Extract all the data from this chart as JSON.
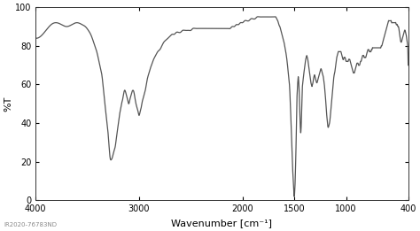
{
  "title": "",
  "xlabel": "Wavenumber [cm⁻¹]",
  "ylabel": "%T",
  "xlim": [
    4000,
    400
  ],
  "ylim": [
    0,
    100
  ],
  "xticks": [
    4000,
    3000,
    2000,
    1500,
    1000,
    400
  ],
  "yticks": [
    0,
    20,
    40,
    60,
    80,
    100
  ],
  "watermark": "IR2020-76783ND",
  "line_color": "#555555",
  "bg_color": "#ffffff",
  "line_width": 0.9,
  "key_points": [
    [
      4000,
      84
    ],
    [
      3950,
      85
    ],
    [
      3900,
      88
    ],
    [
      3850,
      91
    ],
    [
      3800,
      92
    ],
    [
      3750,
      91
    ],
    [
      3700,
      90
    ],
    [
      3650,
      91
    ],
    [
      3600,
      92
    ],
    [
      3550,
      91
    ],
    [
      3520,
      90
    ],
    [
      3490,
      88
    ],
    [
      3460,
      85
    ],
    [
      3440,
      82
    ],
    [
      3420,
      79
    ],
    [
      3400,
      75
    ],
    [
      3380,
      70
    ],
    [
      3360,
      65
    ],
    [
      3340,
      55
    ],
    [
      3320,
      45
    ],
    [
      3300,
      35
    ],
    [
      3290,
      28
    ],
    [
      3280,
      22
    ],
    [
      3270,
      21
    ],
    [
      3260,
      22
    ],
    [
      3250,
      24
    ],
    [
      3240,
      26
    ],
    [
      3230,
      28
    ],
    [
      3220,
      32
    ],
    [
      3210,
      36
    ],
    [
      3200,
      40
    ],
    [
      3190,
      44
    ],
    [
      3180,
      47
    ],
    [
      3170,
      50
    ],
    [
      3160,
      52
    ],
    [
      3150,
      55
    ],
    [
      3140,
      57
    ],
    [
      3130,
      56
    ],
    [
      3120,
      54
    ],
    [
      3110,
      52
    ],
    [
      3100,
      50
    ],
    [
      3090,
      52
    ],
    [
      3080,
      54
    ],
    [
      3070,
      56
    ],
    [
      3060,
      57
    ],
    [
      3050,
      56
    ],
    [
      3040,
      53
    ],
    [
      3030,
      50
    ],
    [
      3020,
      48
    ],
    [
      3010,
      46
    ],
    [
      3000,
      44
    ],
    [
      2990,
      46
    ],
    [
      2980,
      48
    ],
    [
      2970,
      51
    ],
    [
      2960,
      53
    ],
    [
      2950,
      55
    ],
    [
      2940,
      57
    ],
    [
      2930,
      60
    ],
    [
      2920,
      63
    ],
    [
      2910,
      65
    ],
    [
      2900,
      67
    ],
    [
      2880,
      70
    ],
    [
      2860,
      73
    ],
    [
      2840,
      75
    ],
    [
      2820,
      77
    ],
    [
      2800,
      78
    ],
    [
      2780,
      80
    ],
    [
      2760,
      82
    ],
    [
      2740,
      83
    ],
    [
      2720,
      84
    ],
    [
      2700,
      85
    ],
    [
      2680,
      86
    ],
    [
      2660,
      86
    ],
    [
      2640,
      87
    ],
    [
      2620,
      87
    ],
    [
      2600,
      87
    ],
    [
      2580,
      88
    ],
    [
      2560,
      88
    ],
    [
      2540,
      88
    ],
    [
      2520,
      88
    ],
    [
      2500,
      88
    ],
    [
      2480,
      89
    ],
    [
      2460,
      89
    ],
    [
      2440,
      89
    ],
    [
      2420,
      89
    ],
    [
      2400,
      89
    ],
    [
      2380,
      89
    ],
    [
      2360,
      89
    ],
    [
      2340,
      89
    ],
    [
      2320,
      89
    ],
    [
      2300,
      89
    ],
    [
      2280,
      89
    ],
    [
      2260,
      89
    ],
    [
      2240,
      89
    ],
    [
      2220,
      89
    ],
    [
      2200,
      89
    ],
    [
      2180,
      89
    ],
    [
      2160,
      89
    ],
    [
      2140,
      89
    ],
    [
      2120,
      89
    ],
    [
      2100,
      90
    ],
    [
      2080,
      90
    ],
    [
      2060,
      91
    ],
    [
      2040,
      91
    ],
    [
      2020,
      92
    ],
    [
      2000,
      92
    ],
    [
      1980,
      93
    ],
    [
      1960,
      93
    ],
    [
      1940,
      93
    ],
    [
      1920,
      94
    ],
    [
      1900,
      94
    ],
    [
      1880,
      94
    ],
    [
      1860,
      95
    ],
    [
      1840,
      95
    ],
    [
      1820,
      95
    ],
    [
      1800,
      95
    ],
    [
      1780,
      95
    ],
    [
      1760,
      95
    ],
    [
      1740,
      95
    ],
    [
      1720,
      95
    ],
    [
      1700,
      95
    ],
    [
      1690,
      95
    ],
    [
      1680,
      95
    ],
    [
      1670,
      94
    ],
    [
      1660,
      93
    ],
    [
      1650,
      91
    ],
    [
      1640,
      90
    ],
    [
      1630,
      88
    ],
    [
      1620,
      86
    ],
    [
      1610,
      84
    ],
    [
      1600,
      82
    ],
    [
      1590,
      79
    ],
    [
      1580,
      76
    ],
    [
      1570,
      72
    ],
    [
      1560,
      67
    ],
    [
      1550,
      62
    ],
    [
      1545,
      58
    ],
    [
      1540,
      52
    ],
    [
      1535,
      45
    ],
    [
      1530,
      38
    ],
    [
      1525,
      30
    ],
    [
      1520,
      22
    ],
    [
      1515,
      15
    ],
    [
      1510,
      10
    ],
    [
      1507,
      7
    ],
    [
      1505,
      5
    ],
    [
      1503,
      3
    ],
    [
      1501,
      2
    ],
    [
      1500,
      2
    ],
    [
      1499,
      2
    ],
    [
      1498,
      3
    ],
    [
      1496,
      5
    ],
    [
      1494,
      7
    ],
    [
      1492,
      10
    ],
    [
      1490,
      14
    ],
    [
      1488,
      18
    ],
    [
      1486,
      22
    ],
    [
      1484,
      27
    ],
    [
      1482,
      33
    ],
    [
      1480,
      40
    ],
    [
      1478,
      46
    ],
    [
      1476,
      50
    ],
    [
      1474,
      54
    ],
    [
      1472,
      56
    ],
    [
      1470,
      58
    ],
    [
      1468,
      60
    ],
    [
      1466,
      62
    ],
    [
      1464,
      63
    ],
    [
      1462,
      64
    ],
    [
      1460,
      63
    ],
    [
      1458,
      62
    ],
    [
      1456,
      60
    ],
    [
      1454,
      58
    ],
    [
      1452,
      55
    ],
    [
      1450,
      52
    ],
    [
      1448,
      48
    ],
    [
      1446,
      44
    ],
    [
      1444,
      41
    ],
    [
      1442,
      38
    ],
    [
      1440,
      36
    ],
    [
      1438,
      35
    ],
    [
      1436,
      36
    ],
    [
      1434,
      38
    ],
    [
      1432,
      42
    ],
    [
      1430,
      46
    ],
    [
      1428,
      50
    ],
    [
      1426,
      54
    ],
    [
      1424,
      57
    ],
    [
      1422,
      59
    ],
    [
      1420,
      60
    ],
    [
      1418,
      61
    ],
    [
      1416,
      62
    ],
    [
      1414,
      63
    ],
    [
      1412,
      64
    ],
    [
      1410,
      65
    ],
    [
      1405,
      67
    ],
    [
      1400,
      69
    ],
    [
      1395,
      71
    ],
    [
      1390,
      73
    ],
    [
      1385,
      74
    ],
    [
      1380,
      75
    ],
    [
      1375,
      74
    ],
    [
      1370,
      73
    ],
    [
      1365,
      71
    ],
    [
      1360,
      69
    ],
    [
      1355,
      67
    ],
    [
      1350,
      65
    ],
    [
      1345,
      63
    ],
    [
      1340,
      61
    ],
    [
      1335,
      60
    ],
    [
      1330,
      59
    ],
    [
      1325,
      60
    ],
    [
      1320,
      61
    ],
    [
      1315,
      63
    ],
    [
      1310,
      64
    ],
    [
      1305,
      65
    ],
    [
      1300,
      64
    ],
    [
      1295,
      63
    ],
    [
      1290,
      62
    ],
    [
      1285,
      61
    ],
    [
      1280,
      61
    ],
    [
      1275,
      62
    ],
    [
      1270,
      63
    ],
    [
      1265,
      64
    ],
    [
      1260,
      65
    ],
    [
      1255,
      66
    ],
    [
      1250,
      67
    ],
    [
      1245,
      68
    ],
    [
      1240,
      68
    ],
    [
      1235,
      67
    ],
    [
      1230,
      66
    ],
    [
      1225,
      65
    ],
    [
      1220,
      64
    ],
    [
      1215,
      62
    ],
    [
      1210,
      60
    ],
    [
      1205,
      57
    ],
    [
      1200,
      54
    ],
    [
      1195,
      50
    ],
    [
      1190,
      46
    ],
    [
      1185,
      43
    ],
    [
      1180,
      40
    ],
    [
      1175,
      38
    ],
    [
      1170,
      38
    ],
    [
      1165,
      39
    ],
    [
      1160,
      40
    ],
    [
      1155,
      42
    ],
    [
      1150,
      45
    ],
    [
      1145,
      48
    ],
    [
      1140,
      51
    ],
    [
      1135,
      54
    ],
    [
      1130,
      57
    ],
    [
      1125,
      60
    ],
    [
      1120,
      63
    ],
    [
      1115,
      65
    ],
    [
      1110,
      66
    ],
    [
      1105,
      68
    ],
    [
      1100,
      70
    ],
    [
      1095,
      72
    ],
    [
      1090,
      74
    ],
    [
      1085,
      75
    ],
    [
      1080,
      76
    ],
    [
      1075,
      77
    ],
    [
      1070,
      77
    ],
    [
      1065,
      77
    ],
    [
      1060,
      77
    ],
    [
      1055,
      77
    ],
    [
      1050,
      77
    ],
    [
      1045,
      76
    ],
    [
      1040,
      75
    ],
    [
      1035,
      74
    ],
    [
      1030,
      73
    ],
    [
      1025,
      73
    ],
    [
      1020,
      74
    ],
    [
      1015,
      74
    ],
    [
      1010,
      74
    ],
    [
      1005,
      73
    ],
    [
      1000,
      72
    ],
    [
      995,
      72
    ],
    [
      990,
      72
    ],
    [
      985,
      72
    ],
    [
      980,
      72
    ],
    [
      975,
      73
    ],
    [
      970,
      73
    ],
    [
      965,
      73
    ],
    [
      960,
      72
    ],
    [
      955,
      71
    ],
    [
      950,
      70
    ],
    [
      945,
      69
    ],
    [
      940,
      68
    ],
    [
      935,
      67
    ],
    [
      930,
      66
    ],
    [
      925,
      66
    ],
    [
      920,
      66
    ],
    [
      915,
      67
    ],
    [
      910,
      68
    ],
    [
      905,
      69
    ],
    [
      900,
      70
    ],
    [
      895,
      71
    ],
    [
      890,
      71
    ],
    [
      885,
      71
    ],
    [
      880,
      70
    ],
    [
      875,
      70
    ],
    [
      870,
      70
    ],
    [
      865,
      71
    ],
    [
      860,
      72
    ],
    [
      855,
      72
    ],
    [
      850,
      73
    ],
    [
      845,
      74
    ],
    [
      840,
      75
    ],
    [
      835,
      75
    ],
    [
      830,
      75
    ],
    [
      825,
      74
    ],
    [
      820,
      74
    ],
    [
      815,
      74
    ],
    [
      810,
      74
    ],
    [
      805,
      75
    ],
    [
      800,
      76
    ],
    [
      795,
      77
    ],
    [
      790,
      78
    ],
    [
      785,
      78
    ],
    [
      780,
      78
    ],
    [
      775,
      77
    ],
    [
      770,
      77
    ],
    [
      765,
      77
    ],
    [
      760,
      77
    ],
    [
      755,
      78
    ],
    [
      750,
      78
    ],
    [
      745,
      79
    ],
    [
      740,
      79
    ],
    [
      735,
      79
    ],
    [
      730,
      79
    ],
    [
      725,
      79
    ],
    [
      720,
      79
    ],
    [
      715,
      79
    ],
    [
      710,
      79
    ],
    [
      705,
      79
    ],
    [
      700,
      79
    ],
    [
      695,
      79
    ],
    [
      690,
      79
    ],
    [
      685,
      79
    ],
    [
      680,
      79
    ],
    [
      675,
      79
    ],
    [
      670,
      79
    ],
    [
      665,
      79
    ],
    [
      660,
      80
    ],
    [
      655,
      80
    ],
    [
      650,
      81
    ],
    [
      645,
      82
    ],
    [
      640,
      83
    ],
    [
      635,
      84
    ],
    [
      630,
      85
    ],
    [
      625,
      86
    ],
    [
      620,
      87
    ],
    [
      615,
      88
    ],
    [
      610,
      89
    ],
    [
      605,
      90
    ],
    [
      600,
      91
    ],
    [
      595,
      92
    ],
    [
      590,
      93
    ],
    [
      585,
      93
    ],
    [
      580,
      93
    ],
    [
      575,
      93
    ],
    [
      570,
      93
    ],
    [
      565,
      93
    ],
    [
      560,
      92
    ],
    [
      555,
      92
    ],
    [
      550,
      92
    ],
    [
      545,
      92
    ],
    [
      540,
      92
    ],
    [
      535,
      92
    ],
    [
      530,
      92
    ],
    [
      525,
      92
    ],
    [
      520,
      92
    ],
    [
      515,
      91
    ],
    [
      510,
      91
    ],
    [
      505,
      91
    ],
    [
      500,
      90
    ],
    [
      495,
      90
    ],
    [
      490,
      89
    ],
    [
      485,
      87
    ],
    [
      480,
      85
    ],
    [
      475,
      83
    ],
    [
      470,
      82
    ],
    [
      465,
      82
    ],
    [
      460,
      83
    ],
    [
      455,
      84
    ],
    [
      450,
      85
    ],
    [
      445,
      86
    ],
    [
      440,
      87
    ],
    [
      435,
      88
    ],
    [
      430,
      88
    ],
    [
      425,
      87
    ],
    [
      420,
      86
    ],
    [
      415,
      84
    ],
    [
      410,
      82
    ],
    [
      405,
      80
    ],
    [
      400,
      70
    ]
  ]
}
